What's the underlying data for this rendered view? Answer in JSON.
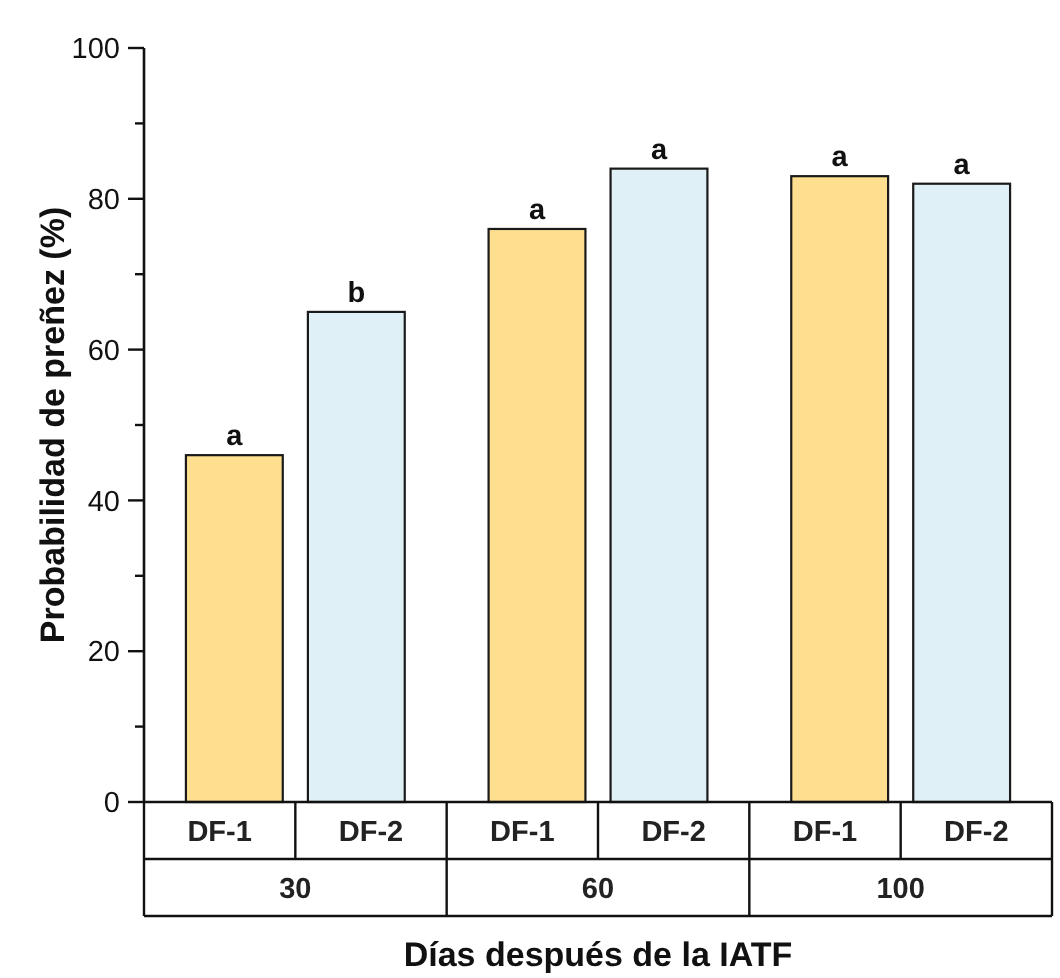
{
  "chart_data": {
    "type": "bar",
    "categories": [
      "30",
      "60",
      "100"
    ],
    "series": [
      {
        "name": "DF-1",
        "color": "#fddf8f",
        "values": [
          46,
          76,
          83
        ]
      },
      {
        "name": "DF-2",
        "color": "#dff1f7",
        "values": [
          65,
          84,
          82
        ]
      }
    ],
    "xlabel": "Días después de la IATF",
    "ylabel": "Probabilidad de preñez (%)",
    "ylim": [
      0,
      100
    ],
    "yticks": [
      0,
      {
        "value": 10,
        "label": null
      },
      20,
      {
        "value": 30,
        "label": null
      },
      40,
      {
        "value": 50,
        "label": null
      },
      60,
      {
        "value": 70,
        "label": null
      },
      80,
      {
        "value": 90,
        "label": null
      },
      100
    ],
    "annotations": [
      "a",
      "b",
      "a",
      "a",
      "a",
      "a"
    ]
  }
}
